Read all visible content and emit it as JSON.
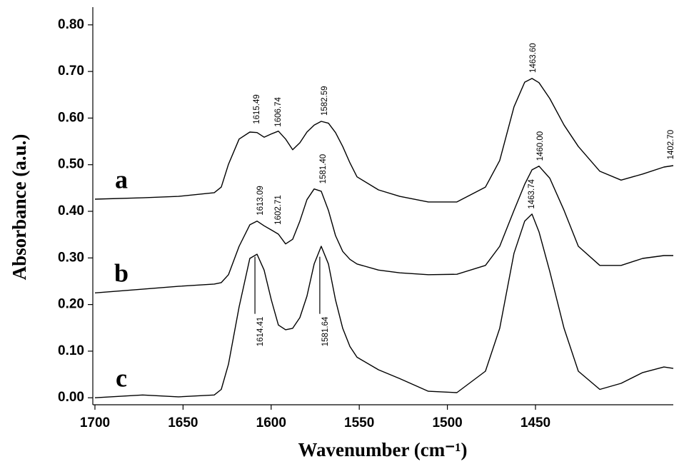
{
  "chart_data": {
    "type": "line",
    "x_label": "Wavenumber (cm⁻¹)",
    "y_label": "Absorbance (a.u.)",
    "xlim": [
      1701.2,
      1371.8
    ],
    "ylim": [
      -0.015,
      0.838
    ],
    "xticks": [
      1700,
      1650,
      1600,
      1550,
      1500,
      1450
    ],
    "yticks": [
      {
        "value": 0.0,
        "label": "0.00"
      },
      {
        "value": 0.1,
        "label": "0.10"
      },
      {
        "value": 0.2,
        "label": "0.20"
      },
      {
        "value": 0.3,
        "label": "0.30"
      },
      {
        "value": 0.4,
        "label": "0.40"
      },
      {
        "value": 0.5,
        "label": "0.50"
      },
      {
        "value": 0.6,
        "label": "0.60"
      },
      {
        "value": 0.7,
        "label": "0.70"
      },
      {
        "value": 0.8,
        "label": "0.80"
      }
    ],
    "x": [
      1700.0,
      1672.9,
      1652.6,
      1632.3,
      1628.3,
      1624.2,
      1618.2,
      1612.1,
      1608.0,
      1604.0,
      1599.9,
      1595.9,
      1591.8,
      1587.8,
      1583.7,
      1579.7,
      1575.6,
      1571.6,
      1567.5,
      1563.5,
      1559.4,
      1555.3,
      1551.3,
      1539.1,
      1527.0,
      1510.8,
      1494.6,
      1478.4,
      1470.3,
      1462.2,
      1456.1,
      1452.0,
      1448.0,
      1441.9,
      1433.8,
      1425.7,
      1413.5,
      1401.4,
      1389.2,
      1377.1,
      1371.8
    ],
    "series": [
      {
        "name": "a",
        "color": "#000000",
        "values": [
          0.426,
          0.429,
          0.432,
          0.44,
          0.452,
          0.501,
          0.555,
          0.57,
          0.569,
          0.559,
          0.566,
          0.572,
          0.555,
          0.532,
          0.547,
          0.57,
          0.585,
          0.593,
          0.589,
          0.569,
          0.539,
          0.504,
          0.474,
          0.446,
          0.432,
          0.42,
          0.42,
          0.452,
          0.509,
          0.624,
          0.677,
          0.685,
          0.676,
          0.642,
          0.585,
          0.539,
          0.486,
          0.467,
          0.48,
          0.495,
          0.498
        ]
      },
      {
        "name": "b",
        "color": "#000000",
        "values": [
          0.225,
          0.233,
          0.239,
          0.244,
          0.247,
          0.264,
          0.325,
          0.371,
          0.379,
          0.369,
          0.36,
          0.351,
          0.33,
          0.34,
          0.379,
          0.425,
          0.448,
          0.443,
          0.402,
          0.348,
          0.314,
          0.297,
          0.287,
          0.274,
          0.268,
          0.264,
          0.265,
          0.284,
          0.325,
          0.402,
          0.458,
          0.489,
          0.497,
          0.471,
          0.402,
          0.325,
          0.284,
          0.284,
          0.299,
          0.305,
          0.305
        ]
      },
      {
        "name": "c",
        "color": "#000000",
        "values": [
          0.0,
          0.006,
          0.002,
          0.006,
          0.018,
          0.072,
          0.195,
          0.299,
          0.308,
          0.274,
          0.21,
          0.156,
          0.146,
          0.149,
          0.172,
          0.218,
          0.287,
          0.325,
          0.287,
          0.21,
          0.149,
          0.11,
          0.087,
          0.06,
          0.041,
          0.014,
          0.011,
          0.057,
          0.149,
          0.31,
          0.379,
          0.394,
          0.356,
          0.271,
          0.149,
          0.057,
          0.018,
          0.031,
          0.054,
          0.066,
          0.063
        ]
      }
    ],
    "annotations": [
      {
        "text": "1615.49",
        "x": 1610.0,
        "y": 0.578
      },
      {
        "text": "1606.74",
        "x": 1597.9,
        "y": 0.572
      },
      {
        "text": "1582.59",
        "x": 1571.6,
        "y": 0.596
      },
      {
        "text": "1463.60",
        "x": 1453.2,
        "y": 0.688
      },
      {
        "text": "1402.70",
        "x": 1375.0,
        "y": 0.502
      },
      {
        "text": "1613.09",
        "x": 1608.0,
        "y": 0.382
      },
      {
        "text": "1602.71",
        "x": 1597.9,
        "y": 0.362
      },
      {
        "text": "1581.40",
        "x": 1572.4,
        "y": 0.45
      },
      {
        "text": "1460.00",
        "x": 1449.2,
        "y": 0.499
      },
      {
        "text": "1463.74",
        "x": 1454.1,
        "y": 0.396
      },
      {
        "text": "1614.41",
        "x": 1609.2,
        "y": 0.18,
        "side": "below"
      },
      {
        "text": "1581.64",
        "x": 1572.4,
        "y": 0.18,
        "side": "below"
      }
    ]
  }
}
